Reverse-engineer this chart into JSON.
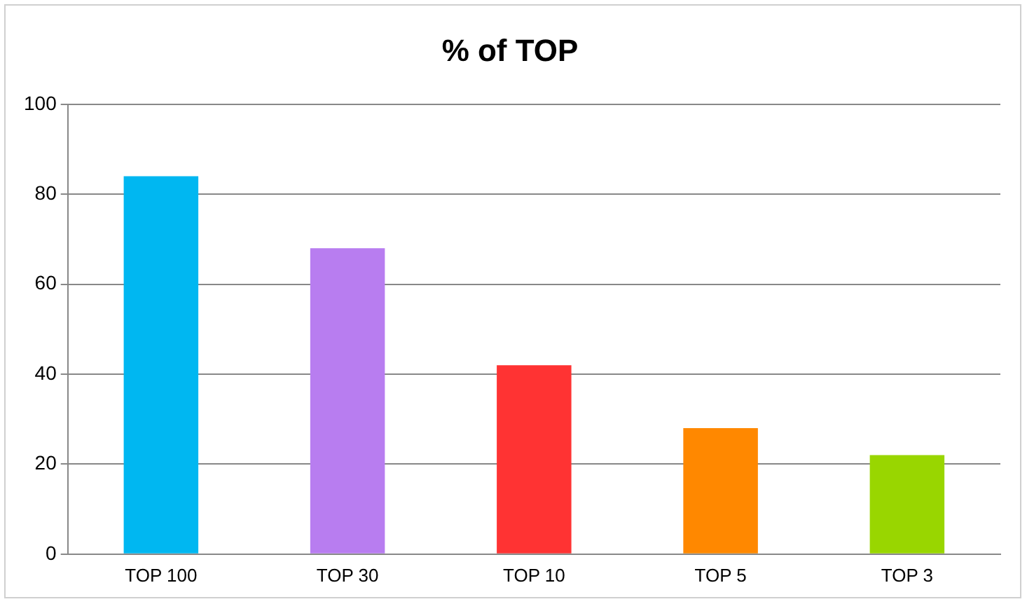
{
  "chart_data": {
    "type": "bar",
    "title": "% of TOP",
    "categories": [
      "TOP 100",
      "TOP 30",
      "TOP 10",
      "TOP 5",
      "TOP 3"
    ],
    "values": [
      84,
      68,
      42,
      28,
      22
    ],
    "colors": [
      "#00b7f1",
      "#b87df0",
      "#ff3333",
      "#ff8800",
      "#99d600"
    ],
    "ylim": [
      0,
      100
    ],
    "yticks": [
      0,
      20,
      40,
      60,
      80,
      100
    ],
    "grid": "y",
    "legend": false
  }
}
